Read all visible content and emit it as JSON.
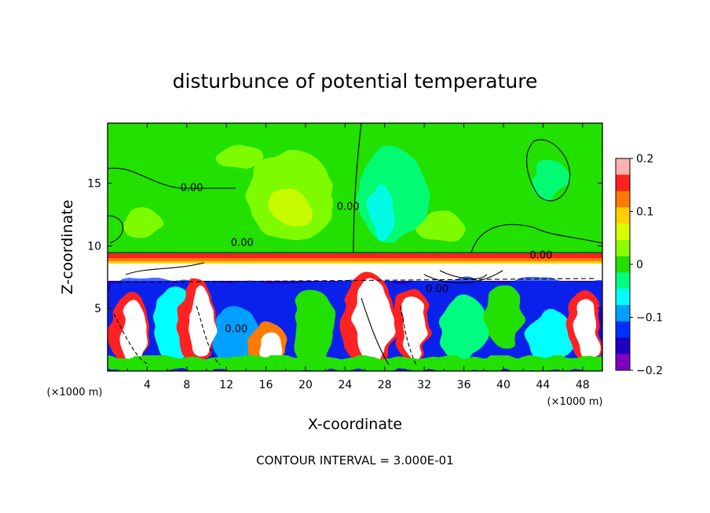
{
  "chart_data": {
    "type": "heatmap",
    "title": "disturbunce of potential temperature",
    "xlabel": "X-coordinate",
    "ylabel": "Z-coordinate",
    "x_unit": "(×1000 m)",
    "x_ticks": [
      4,
      8,
      12,
      16,
      20,
      24,
      28,
      32,
      36,
      40,
      44,
      48
    ],
    "y_ticks": [
      5,
      10,
      15
    ],
    "xlim": [
      0,
      50
    ],
    "ylim": [
      0,
      19.8
    ],
    "colorbar": {
      "ticks": [
        "0.2",
        "0.1",
        "0",
        "−0.1",
        "−0.2"
      ],
      "range": [
        -0.2,
        0.2
      ],
      "colors": [
        "#ffb0b0",
        "#ff2020",
        "#ff7a00",
        "#ffd000",
        "#d8ff00",
        "#8aff00",
        "#22e000",
        "#00ff80",
        "#00ffff",
        "#00a0ff",
        "#0030ff",
        "#2000c0",
        "#8000c0"
      ]
    },
    "contour_labels": [
      {
        "text": "0.00",
        "x": 8.5,
        "z": 14.7
      },
      {
        "text": "0.00",
        "x": 43.8,
        "z": 9.3
      },
      {
        "text": "0.00",
        "x": 24.3,
        "z": 13.2
      },
      {
        "text": "0.00",
        "x": 13.6,
        "z": 10.3
      },
      {
        "text": "0.00",
        "x": 13.0,
        "z": 3.4
      },
      {
        "text": "0.00",
        "x": 33.3,
        "z": 6.6
      }
    ],
    "contour_interval_text": "CONTOUR INTERVAL = 3.000E-01"
  }
}
